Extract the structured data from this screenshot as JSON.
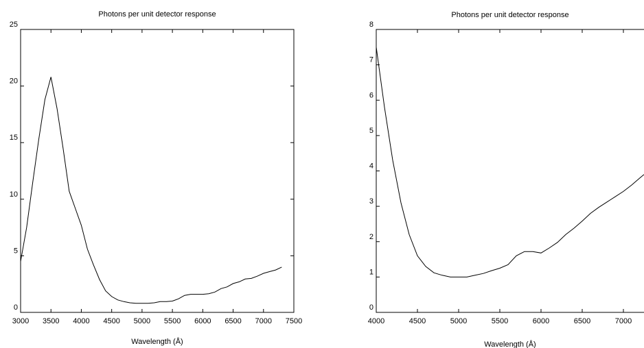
{
  "chart_data": [
    {
      "type": "line",
      "title": "Photons per unit detector response",
      "xlabel": "Wavelength (Å)",
      "ylabel": "",
      "xlim": [
        3000,
        7500
      ],
      "ylim": [
        0,
        25
      ],
      "xticks": [
        3000,
        3500,
        4000,
        4500,
        5000,
        5500,
        6000,
        6500,
        7000,
        7500
      ],
      "yticks": [
        0,
        5,
        10,
        15,
        20,
        25
      ],
      "xtick_labels": [
        "3000",
        "3500",
        "4000",
        "4500",
        "5000",
        "5500",
        "6000",
        "6500",
        "7000",
        "7500"
      ],
      "ytick_labels": [
        "0",
        "5",
        "10",
        "15",
        "20",
        "25"
      ],
      "grid": false,
      "color": "#000000",
      "series": [
        {
          "x": [
            3000,
            3100,
            3200,
            3300,
            3400,
            3500,
            3600,
            3700,
            3800,
            3900,
            4000,
            4100,
            4200,
            4300,
            4400,
            4500,
            4600,
            4700,
            4800,
            4900,
            5000,
            5100,
            5200,
            5300,
            5400,
            5500,
            5600,
            5700,
            5800,
            5900,
            6000,
            6100,
            6200,
            6300,
            6400,
            6500,
            6600,
            6700,
            6800,
            6900,
            7000,
            7100,
            7200,
            7300
          ],
          "y": [
            4.5,
            7.5,
            11.5,
            15.3,
            18.8,
            20.8,
            18.0,
            14.5,
            10.7,
            9.2,
            7.7,
            5.6,
            4.2,
            2.9,
            1.9,
            1.4,
            1.1,
            0.95,
            0.85,
            0.8,
            0.8,
            0.8,
            0.85,
            0.95,
            0.95,
            1.0,
            1.2,
            1.5,
            1.6,
            1.6,
            1.6,
            1.65,
            1.8,
            2.1,
            2.25,
            2.55,
            2.7,
            2.95,
            3.0,
            3.2,
            3.45,
            3.6,
            3.75,
            4.0
          ]
        }
      ]
    },
    {
      "type": "line",
      "title": "Photons per unit detector response",
      "xlabel": "Wavelength (Å)",
      "ylabel": "",
      "xlim": [
        4000,
        7250
      ],
      "ylim": [
        0,
        8
      ],
      "xticks": [
        4000,
        4500,
        5000,
        5500,
        6000,
        6500,
        7000
      ],
      "yticks": [
        0,
        1,
        2,
        3,
        4,
        5,
        6,
        7,
        8
      ],
      "xtick_labels": [
        "4000",
        "4500",
        "5000",
        "5500",
        "6000",
        "6500",
        "7000"
      ],
      "ytick_labels": [
        "0",
        "1",
        "2",
        "3",
        "4",
        "5",
        "6",
        "7",
        "8"
      ],
      "grid": false,
      "color": "#000000",
      "series": [
        {
          "x": [
            4000,
            4100,
            4200,
            4300,
            4400,
            4500,
            4600,
            4700,
            4800,
            4900,
            5000,
            5100,
            5200,
            5300,
            5400,
            5500,
            5600,
            5700,
            5800,
            5900,
            6000,
            6100,
            6200,
            6300,
            6400,
            6500,
            6600,
            6700,
            6800,
            6900,
            7000,
            7100,
            7200,
            7250
          ],
          "y": [
            7.5,
            5.8,
            4.3,
            3.1,
            2.2,
            1.6,
            1.3,
            1.12,
            1.05,
            1.0,
            1.0,
            1.0,
            1.05,
            1.1,
            1.18,
            1.25,
            1.35,
            1.6,
            1.72,
            1.72,
            1.68,
            1.82,
            1.98,
            2.2,
            2.38,
            2.58,
            2.8,
            2.97,
            3.12,
            3.27,
            3.42,
            3.6,
            3.8,
            3.9
          ]
        }
      ]
    }
  ]
}
